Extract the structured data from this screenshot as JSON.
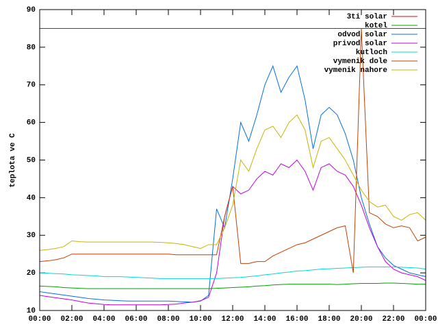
{
  "chart_data": {
    "type": "line",
    "ylabel": "teplota ve C",
    "x": [
      0,
      0.5,
      1,
      1.5,
      2,
      2.5,
      3,
      3.5,
      4,
      4.5,
      5,
      5.5,
      6,
      6.5,
      7,
      7.5,
      8,
      8.5,
      9,
      9.5,
      10,
      10.5,
      11,
      11.5,
      12,
      12.5,
      13,
      13.5,
      14,
      14.5,
      15,
      15.5,
      16,
      16.5,
      17,
      17.5,
      18,
      18.5,
      19,
      19.5,
      20,
      20.5,
      21,
      21.5,
      22,
      22.5,
      23,
      23.5,
      24
    ],
    "xlim": [
      0,
      24
    ],
    "xticks": [
      {
        "value": 0,
        "label": "00:00"
      },
      {
        "value": 2,
        "label": "02:00"
      },
      {
        "value": 4,
        "label": "04:00"
      },
      {
        "value": 6,
        "label": "06:00"
      },
      {
        "value": 8,
        "label": "08:00"
      },
      {
        "value": 10,
        "label": "10:00"
      },
      {
        "value": 12,
        "label": "12:00"
      },
      {
        "value": 14,
        "label": "14:00"
      },
      {
        "value": 16,
        "label": "16:00"
      },
      {
        "value": 18,
        "label": "18:00"
      },
      {
        "value": 20,
        "label": "20:00"
      },
      {
        "value": 22,
        "label": "22:00"
      },
      {
        "value": 24,
        "label": "00:00"
      }
    ],
    "ylim": [
      10,
      90
    ],
    "yticks": [
      10,
      20,
      30,
      40,
      50,
      60,
      70,
      80,
      90
    ],
    "grid": false,
    "legend": "top-right",
    "series": [
      {
        "name": "3ti solar",
        "color": "#c01010",
        "values": [
          85,
          85,
          85,
          85,
          85,
          85,
          85,
          85,
          85,
          85,
          85,
          85,
          85,
          85,
          85,
          85,
          85,
          85,
          85,
          85,
          85,
          85,
          85,
          85,
          85,
          85,
          85,
          85,
          85,
          85,
          85,
          85,
          85,
          85,
          85,
          85,
          85,
          85,
          85,
          85,
          85,
          85,
          85,
          85,
          85,
          85,
          85,
          85,
          85
        ]
      },
      {
        "name": "kotel",
        "color": "#00a000",
        "values": [
          16.5,
          16.4,
          16.3,
          16.1,
          16,
          15.9,
          15.8,
          15.8,
          15.8,
          15.8,
          15.8,
          15.8,
          15.8,
          15.8,
          15.8,
          15.8,
          15.8,
          15.8,
          15.8,
          15.8,
          15.8,
          15.8,
          15.9,
          16,
          16.1,
          16.2,
          16.3,
          16.5,
          16.6,
          16.8,
          16.9,
          17,
          17,
          17,
          17,
          17,
          17,
          16.9,
          17,
          17.1,
          17.2,
          17.2,
          17.2,
          17.3,
          17.3,
          17.2,
          17.1,
          17,
          17
        ]
      },
      {
        "name": "odvod solar",
        "color": "#0070e0",
        "values": [
          15,
          14.7,
          14.4,
          14.1,
          13.8,
          13.5,
          13.2,
          13,
          12.8,
          12.7,
          12.6,
          12.5,
          12.5,
          12.5,
          12.5,
          12.5,
          12.5,
          12.4,
          12.3,
          12.2,
          12.5,
          14,
          37,
          32,
          45,
          60,
          55,
          62,
          70,
          75,
          68,
          72,
          75,
          66,
          53,
          62,
          64,
          62,
          57,
          50,
          40,
          33,
          27,
          24,
          22,
          21,
          20,
          19.5,
          19
        ]
      },
      {
        "name": "privod solar",
        "color": "#c000e0",
        "values": [
          14,
          13.7,
          13.4,
          13.1,
          12.8,
          12.4,
          12,
          11.8,
          11.6,
          11.5,
          11.5,
          11.5,
          11.5,
          11.5,
          11.5,
          11.5,
          11.6,
          11.7,
          12,
          12.2,
          12.6,
          13.5,
          20,
          35,
          43,
          41,
          42,
          45,
          47,
          46,
          49,
          48,
          50,
          47,
          42,
          48,
          49,
          47,
          46,
          43,
          38,
          32,
          27,
          23,
          21,
          20,
          19.5,
          19,
          18
        ]
      },
      {
        "name": "kutloch",
        "color": "#00d8d8",
        "values": [
          20,
          19.9,
          19.8,
          19.7,
          19.5,
          19.4,
          19.3,
          19.2,
          19,
          19,
          19,
          18.9,
          18.8,
          18.7,
          18.6,
          18.5,
          18.5,
          18.5,
          18.5,
          18.5,
          18.5,
          18.5,
          18.5,
          18.6,
          18.7,
          18.8,
          19,
          19.2,
          19.5,
          19.7,
          20,
          20.2,
          20.5,
          20.6,
          20.8,
          21,
          21.1,
          21.2,
          21.3,
          21.4,
          21.5,
          21.6,
          21.6,
          21.6,
          21.6,
          21.5,
          21.4,
          21.3,
          21
        ]
      },
      {
        "name": "vymenik dole",
        "color": "#c04000",
        "values": [
          23,
          23.2,
          23.5,
          24,
          25,
          25,
          25,
          25,
          25,
          25,
          25,
          25,
          25,
          25,
          25,
          25,
          25,
          24.8,
          24.8,
          24.8,
          24.8,
          24.8,
          24.8,
          35,
          43,
          22.5,
          22.5,
          23,
          23,
          24.5,
          25.5,
          26.5,
          27.5,
          28,
          29,
          30,
          31,
          32,
          32.5,
          20,
          85,
          36,
          35,
          33,
          32,
          32.5,
          32,
          28.5,
          29.5
        ]
      },
      {
        "name": "vymenik nahore",
        "color": "#c8b400",
        "values": [
          26,
          26.2,
          26.5,
          27,
          28.5,
          28.3,
          28.2,
          28.2,
          28.2,
          28.2,
          28.2,
          28.2,
          28.2,
          28.2,
          28.2,
          28.1,
          28,
          27.8,
          27.5,
          27,
          26.5,
          27.5,
          27.5,
          32,
          38,
          50,
          47,
          53,
          58,
          59,
          56,
          60,
          62,
          58,
          48,
          55,
          56,
          53,
          50,
          46,
          42,
          39,
          37.5,
          38,
          35,
          34,
          35.5,
          36,
          34
        ]
      }
    ]
  }
}
